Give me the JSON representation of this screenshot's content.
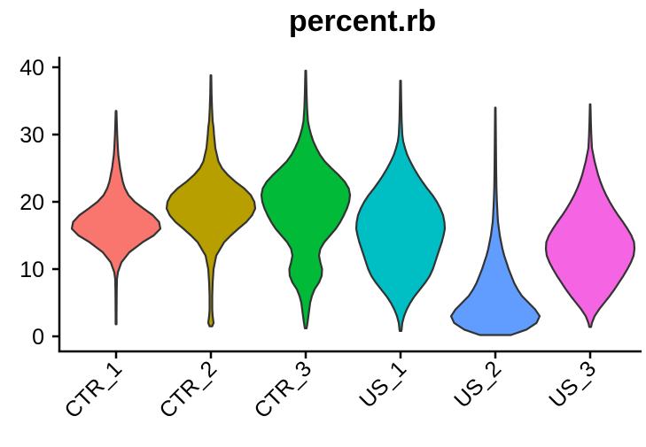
{
  "chart_data": {
    "type": "violin",
    "title": "percent.rb",
    "xlabel": "",
    "ylabel": "",
    "ylim": [
      0,
      40
    ],
    "yticks": [
      0,
      10,
      20,
      30,
      40
    ],
    "ytick_labels": [
      "0",
      "10",
      "20",
      "30",
      "40"
    ],
    "grid": false,
    "legend": "none",
    "categories": [
      "CTR_1",
      "CTR_2",
      "CTR_3",
      "US_1",
      "US_2",
      "US_3"
    ],
    "series": [
      {
        "category": "CTR_1",
        "color": "#F8766D",
        "min": 1.8,
        "max": 33.5,
        "density": [
          [
            1.8,
            0.01
          ],
          [
            3,
            0.01
          ],
          [
            5,
            0.012
          ],
          [
            7,
            0.015
          ],
          [
            8.5,
            0.02
          ],
          [
            9.5,
            0.04
          ],
          [
            11,
            0.12
          ],
          [
            12.5,
            0.3
          ],
          [
            14,
            0.6
          ],
          [
            15,
            0.85
          ],
          [
            16,
            1.0
          ],
          [
            17,
            0.97
          ],
          [
            18,
            0.83
          ],
          [
            19,
            0.62
          ],
          [
            20,
            0.42
          ],
          [
            21,
            0.28
          ],
          [
            22,
            0.2
          ],
          [
            23,
            0.15
          ],
          [
            24,
            0.12
          ],
          [
            25,
            0.09
          ],
          [
            26,
            0.07
          ],
          [
            27,
            0.05
          ],
          [
            28,
            0.04
          ],
          [
            30,
            0.025
          ],
          [
            32,
            0.015
          ],
          [
            33.5,
            0.008
          ]
        ]
      },
      {
        "category": "CTR_2",
        "color": "#B79F00",
        "min": 1.5,
        "max": 38.8,
        "density": [
          [
            1.5,
            0.03
          ],
          [
            2,
            0.06
          ],
          [
            3,
            0.04
          ],
          [
            4,
            0.03
          ],
          [
            6,
            0.03
          ],
          [
            8,
            0.04
          ],
          [
            10,
            0.06
          ],
          [
            12,
            0.12
          ],
          [
            14,
            0.3
          ],
          [
            15,
            0.45
          ],
          [
            16,
            0.62
          ],
          [
            17,
            0.8
          ],
          [
            18,
            0.93
          ],
          [
            19,
            1.0
          ],
          [
            20,
            0.98
          ],
          [
            21,
            0.9
          ],
          [
            22,
            0.75
          ],
          [
            23,
            0.55
          ],
          [
            24,
            0.38
          ],
          [
            25,
            0.25
          ],
          [
            26,
            0.17
          ],
          [
            28,
            0.1
          ],
          [
            30,
            0.07
          ],
          [
            31,
            0.06
          ],
          [
            32,
            0.04
          ],
          [
            34,
            0.025
          ],
          [
            36,
            0.015
          ],
          [
            38.8,
            0.008
          ]
        ]
      },
      {
        "category": "CTR_3",
        "color": "#00BA38",
        "min": 1.2,
        "max": 39.5,
        "density": [
          [
            1.2,
            0.02
          ],
          [
            2,
            0.04
          ],
          [
            3,
            0.06
          ],
          [
            4,
            0.08
          ],
          [
            5,
            0.1
          ],
          [
            6,
            0.14
          ],
          [
            7,
            0.2
          ],
          [
            8,
            0.3
          ],
          [
            9,
            0.36
          ],
          [
            10,
            0.37
          ],
          [
            11,
            0.33
          ],
          [
            12,
            0.3
          ],
          [
            13,
            0.33
          ],
          [
            14,
            0.42
          ],
          [
            15,
            0.55
          ],
          [
            16,
            0.68
          ],
          [
            17,
            0.78
          ],
          [
            18,
            0.86
          ],
          [
            19,
            0.93
          ],
          [
            20,
            0.98
          ],
          [
            21,
            1.0
          ],
          [
            22,
            0.97
          ],
          [
            23,
            0.88
          ],
          [
            24,
            0.74
          ],
          [
            25,
            0.58
          ],
          [
            26,
            0.43
          ],
          [
            27,
            0.32
          ],
          [
            28,
            0.24
          ],
          [
            29,
            0.17
          ],
          [
            30,
            0.12
          ],
          [
            31,
            0.08
          ],
          [
            32,
            0.05
          ],
          [
            34,
            0.03
          ],
          [
            36,
            0.02
          ],
          [
            39.5,
            0.008
          ]
        ]
      },
      {
        "category": "US_1",
        "color": "#00BFC4",
        "min": 0.8,
        "max": 38.0,
        "density": [
          [
            0.8,
            0.02
          ],
          [
            2,
            0.04
          ],
          [
            3,
            0.08
          ],
          [
            4,
            0.14
          ],
          [
            5,
            0.22
          ],
          [
            6,
            0.32
          ],
          [
            7,
            0.44
          ],
          [
            8,
            0.56
          ],
          [
            9,
            0.66
          ],
          [
            10,
            0.73
          ],
          [
            11,
            0.78
          ],
          [
            12,
            0.83
          ],
          [
            13,
            0.88
          ],
          [
            14,
            0.93
          ],
          [
            15,
            0.97
          ],
          [
            16,
            1.0
          ],
          [
            17,
            0.99
          ],
          [
            18,
            0.96
          ],
          [
            19,
            0.9
          ],
          [
            20,
            0.82
          ],
          [
            21,
            0.72
          ],
          [
            22,
            0.6
          ],
          [
            23,
            0.49
          ],
          [
            24,
            0.39
          ],
          [
            25,
            0.3
          ],
          [
            26,
            0.22
          ],
          [
            27,
            0.15
          ],
          [
            28,
            0.1
          ],
          [
            29,
            0.06
          ],
          [
            30,
            0.04
          ],
          [
            32,
            0.025
          ],
          [
            35,
            0.015
          ],
          [
            38,
            0.008
          ]
        ]
      },
      {
        "category": "US_2",
        "color": "#619CFF",
        "min": 0.2,
        "max": 34.0,
        "density": [
          [
            0.2,
            0.35
          ],
          [
            1,
            0.7
          ],
          [
            2,
            0.93
          ],
          [
            3,
            1.0
          ],
          [
            4,
            0.9
          ],
          [
            5,
            0.75
          ],
          [
            6,
            0.6
          ],
          [
            7,
            0.5
          ],
          [
            8,
            0.42
          ],
          [
            9,
            0.36
          ],
          [
            10,
            0.3
          ],
          [
            11,
            0.25
          ],
          [
            12,
            0.2
          ],
          [
            13,
            0.16
          ],
          [
            14,
            0.13
          ],
          [
            15,
            0.1
          ],
          [
            16,
            0.08
          ],
          [
            17,
            0.06
          ],
          [
            18,
            0.05
          ],
          [
            20,
            0.035
          ],
          [
            22,
            0.025
          ],
          [
            25,
            0.018
          ],
          [
            28,
            0.014
          ],
          [
            31,
            0.01
          ],
          [
            34,
            0.006
          ]
        ]
      },
      {
        "category": "US_3",
        "color": "#F564E3",
        "min": 1.4,
        "max": 34.5,
        "density": [
          [
            1.4,
            0.02
          ],
          [
            2,
            0.04
          ],
          [
            3,
            0.1
          ],
          [
            4,
            0.2
          ],
          [
            5,
            0.32
          ],
          [
            6,
            0.44
          ],
          [
            7,
            0.55
          ],
          [
            8,
            0.65
          ],
          [
            9,
            0.75
          ],
          [
            10,
            0.84
          ],
          [
            11,
            0.92
          ],
          [
            12,
            0.98
          ],
          [
            13,
            1.0
          ],
          [
            14,
            0.99
          ],
          [
            15,
            0.93
          ],
          [
            16,
            0.84
          ],
          [
            17,
            0.74
          ],
          [
            18,
            0.63
          ],
          [
            19,
            0.53
          ],
          [
            20,
            0.44
          ],
          [
            21,
            0.36
          ],
          [
            22,
            0.29
          ],
          [
            23,
            0.23
          ],
          [
            24,
            0.18
          ],
          [
            25,
            0.14
          ],
          [
            26,
            0.1
          ],
          [
            27,
            0.07
          ],
          [
            28,
            0.04
          ],
          [
            30,
            0.025
          ],
          [
            32,
            0.015
          ],
          [
            34.5,
            0.006
          ]
        ]
      }
    ]
  }
}
